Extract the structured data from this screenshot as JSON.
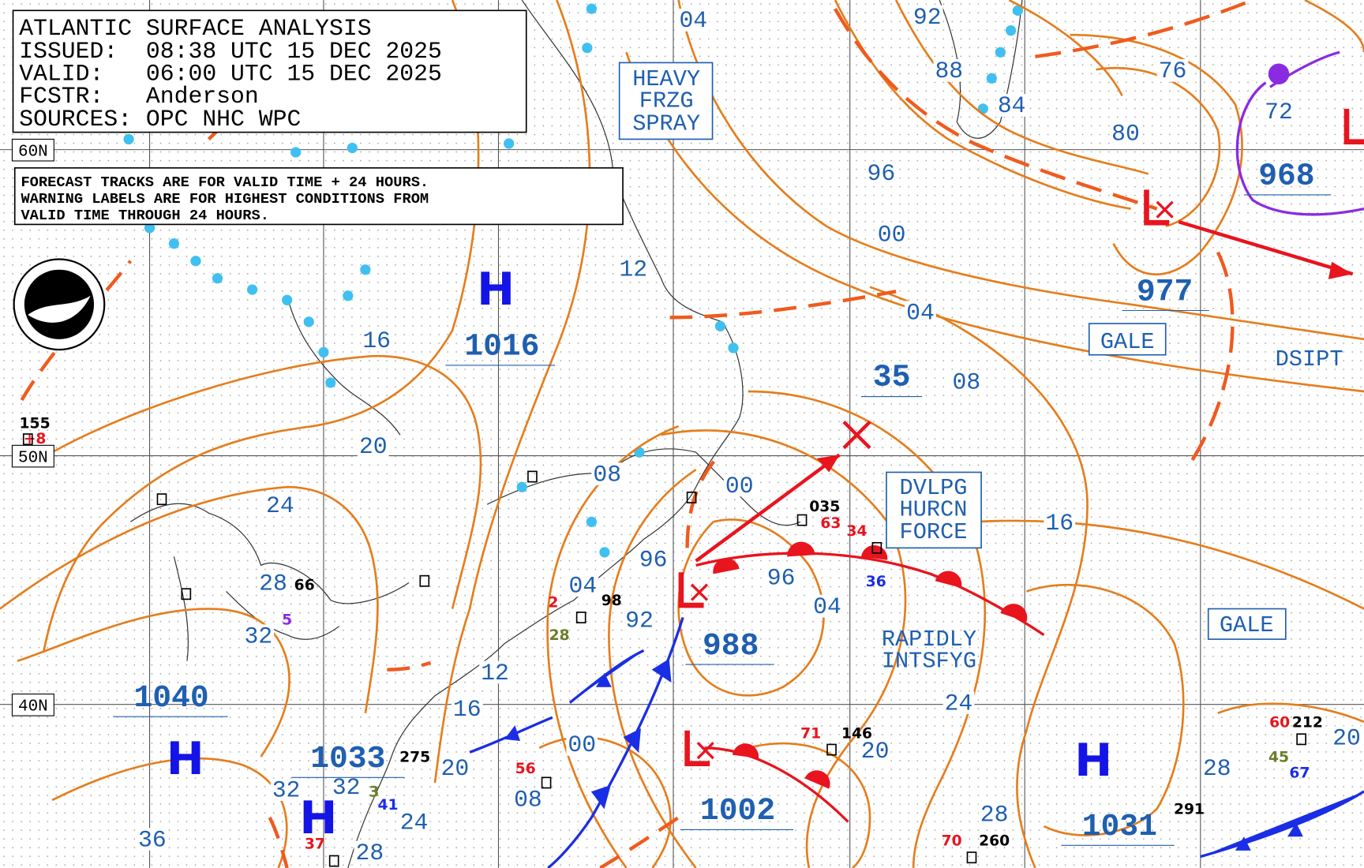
{
  "header": {
    "title": "ATLANTIC SURFACE ANALYSIS",
    "issued": "ISSUED:  08:38 UTC 15 DEC 2025",
    "valid": "VALID:   06:00 UTC 15 DEC 2025",
    "forecaster": "FCSTR:   Anderson",
    "sources": "SOURCES: OPC NHC WPC"
  },
  "note": [
    "FORECAST TRACKS ARE FOR VALID TIME + 24 HOURS.",
    "WARNING LABELS ARE FOR HIGHEST CONDITIONS FROM",
    "VALID TIME THROUGH 24 HOURS."
  ],
  "latitude_labels": [
    "60N",
    "50N",
    "40N"
  ],
  "highs": [
    {
      "letter": "H",
      "pressure": 1016
    },
    {
      "letter": "H",
      "pressure": 1040
    },
    {
      "letter": "H",
      "pressure": 1033
    },
    {
      "letter": "H",
      "pressure": 1031
    }
  ],
  "lows": [
    977,
    988,
    1002,
    968
  ],
  "warnings": {
    "freezing_spray": [
      "HEAVY",
      "FRZG",
      "SPRAY"
    ],
    "gale_north": "GALE",
    "hurricane_force": [
      "DVLPG",
      "HURCN",
      "FORCE"
    ],
    "rapidly_intensifying": [
      "RAPIDLY",
      "INTSFYG"
    ],
    "gale_east": "GALE",
    "dissipating": "DSIPT"
  },
  "boxed_label": 35,
  "isobar_labels": [
    "04",
    "92",
    "88",
    "84",
    "76",
    "80",
    "72",
    "96",
    "00",
    "12",
    "04",
    "16",
    "08",
    "20",
    "08",
    "00",
    "16",
    "24",
    "96",
    "28",
    "04",
    "96",
    "92",
    "04",
    "32",
    "12",
    "16",
    "24",
    "00",
    "20",
    "20",
    "28",
    "20",
    "08",
    "32",
    "32",
    "28",
    "24",
    "36",
    "28"
  ],
  "station_values": [
    "155",
    "+8",
    "66",
    "5",
    "2",
    "98",
    "28",
    "035",
    "63",
    "34",
    "36",
    "56",
    "71",
    "146",
    "60",
    "212",
    "45",
    "67",
    "70",
    "260",
    "291",
    "275",
    "37",
    "41",
    "3"
  ]
}
